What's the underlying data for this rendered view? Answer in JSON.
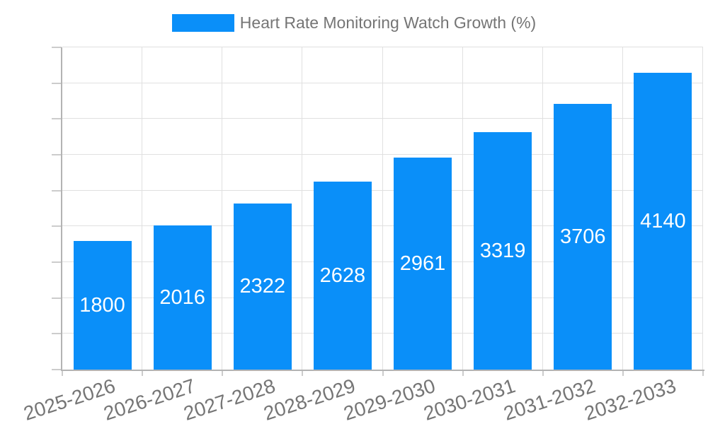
{
  "chart_data": {
    "type": "bar",
    "title": "Heart Rate Monitoring Watch Growth (%)",
    "legend": {
      "label": "Heart Rate Monitoring Watch Growth (%)",
      "position": "top-center"
    },
    "categories": [
      "2025-2026",
      "2026-2027",
      "2027-2028",
      "2028-2029",
      "2029-2030",
      "2030-2031",
      "2031-2032",
      "2032-2033"
    ],
    "series": [
      {
        "name": "Heart Rate Monitoring Watch Growth (%)",
        "values": [
          1800,
          2016,
          2322,
          2628,
          2961,
          3319,
          3706,
          4140
        ]
      }
    ],
    "xlabel": "",
    "ylabel": "",
    "ylim": [
      0,
      4500
    ],
    "yticks": [
      0,
      500,
      1000,
      1500,
      2000,
      2500,
      3000,
      3500,
      4000,
      4500
    ],
    "grid": "horizontal-and-vertical",
    "x_label_rotation_deg": -18,
    "value_label_position": "inside-center",
    "colors": {
      "bar": "#0a8ff9",
      "value_label": "#ffffff",
      "axis_label": "#757575",
      "legend_label": "#757575",
      "gridline": "#e0e0e0",
      "axis_line": "#b3b3b3",
      "tick": "#cccccc",
      "background": "#ffffff"
    }
  }
}
